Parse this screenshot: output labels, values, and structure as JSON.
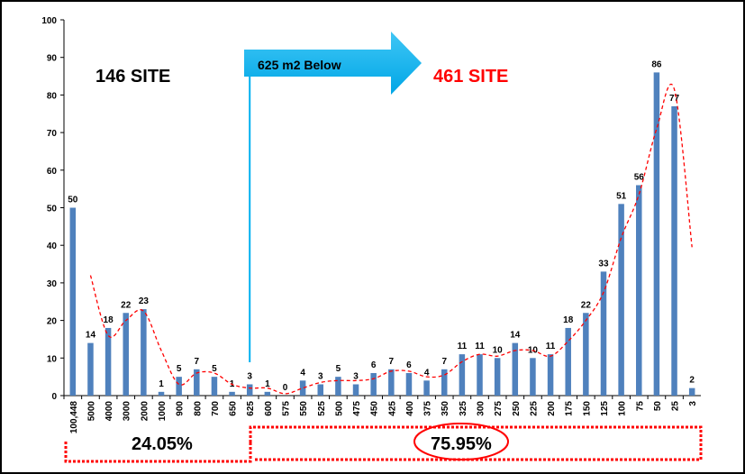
{
  "chart_data": {
    "type": "bar",
    "categories": [
      "100,448",
      "5000",
      "4000",
      "3000",
      "2000",
      "1000",
      "900",
      "800",
      "700",
      "650",
      "625",
      "600",
      "575",
      "550",
      "525",
      "500",
      "475",
      "450",
      "425",
      "400",
      "375",
      "350",
      "325",
      "300",
      "275",
      "250",
      "225",
      "200",
      "175",
      "150",
      "125",
      "100",
      "75",
      "50",
      "25",
      "3"
    ],
    "values": [
      50,
      14,
      18,
      22,
      23,
      1,
      5,
      7,
      5,
      1,
      3,
      1,
      0,
      4,
      3,
      5,
      3,
      6,
      7,
      6,
      4,
      7,
      11,
      11,
      10,
      14,
      10,
      11,
      18,
      22,
      33,
      51,
      56,
      86,
      77,
      2
    ],
    "ylim": [
      0,
      100
    ],
    "yticks": [
      0,
      10,
      20,
      30,
      40,
      50,
      60,
      70,
      80,
      90,
      100
    ],
    "grid": false,
    "bar_color": "#4f81bd",
    "trend_color": "#ff0000",
    "trendline": "moving-average, red dashed"
  },
  "annotations": {
    "left_count": "146 SITE",
    "right_count": "461 SITE",
    "arrow_label": "625 m2 Below",
    "left_percent": "24.05%",
    "right_percent": "75.95%",
    "left_color": "#000000",
    "right_color": "#ff0000",
    "arrow_color": "#00b0f0"
  }
}
